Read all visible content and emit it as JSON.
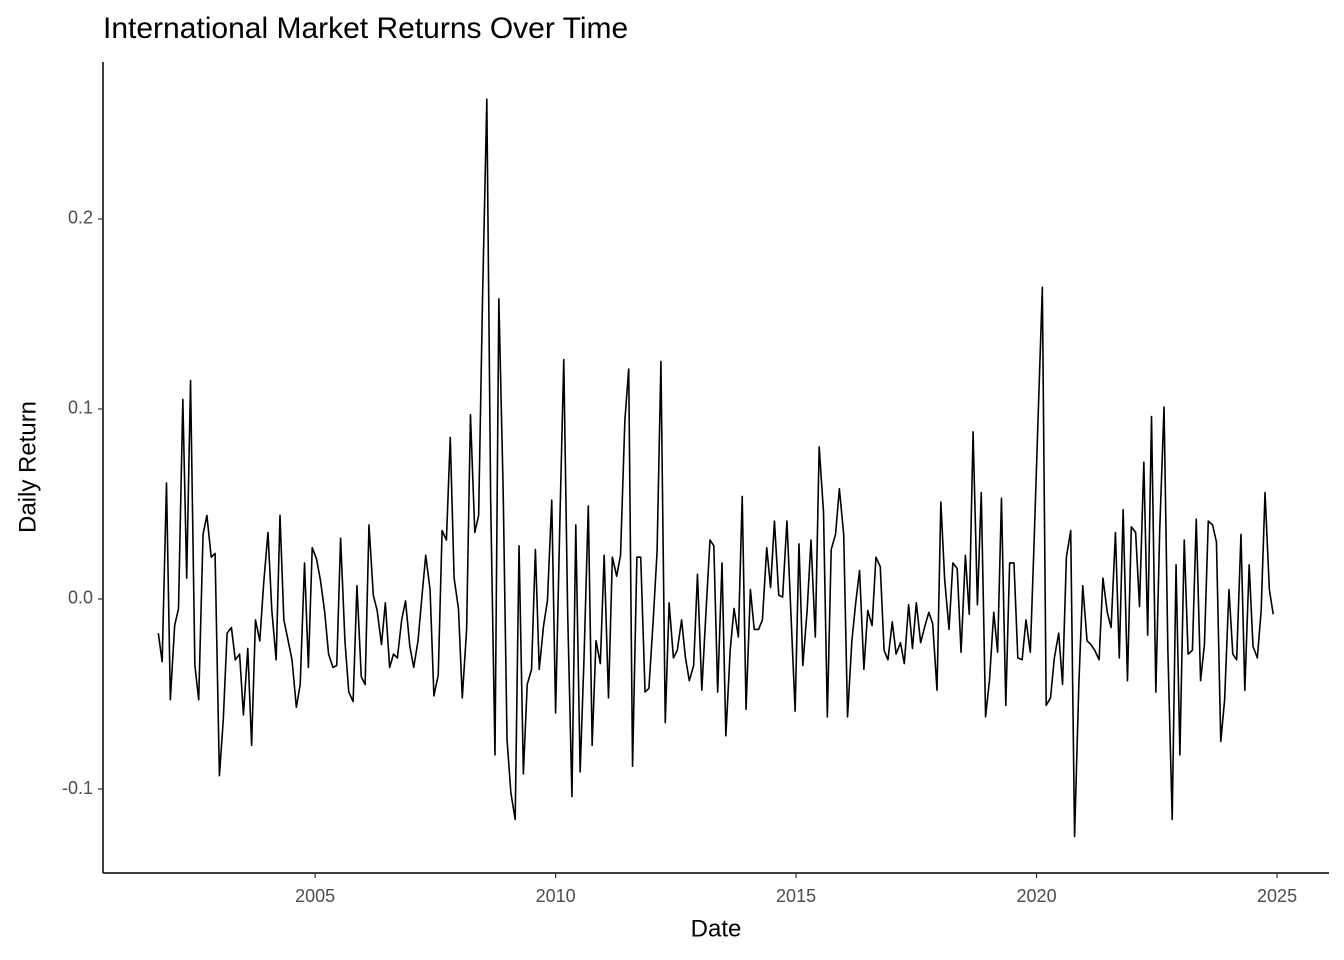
{
  "chart_data": {
    "type": "line",
    "title": "International Market Returns Over Time",
    "x_label": "Date",
    "y_label": "Daily Return",
    "color": "#000000",
    "xlim": [
      2000.59,
      2026.08
    ],
    "ylim": [
      -0.1442,
      0.2826
    ],
    "xticks": [
      2005,
      2010,
      2015,
      2020,
      2025
    ],
    "yticks": [
      -0.1,
      {
        "value": 0,
        "label": "0.0"
      },
      0.1,
      0.2
    ],
    "x": [
      2001.74,
      2001.82,
      2001.91,
      2001.99,
      2002.08,
      2002.16,
      2002.25,
      2002.33,
      2002.41,
      2002.5,
      2002.58,
      2002.67,
      2002.75,
      2002.84,
      2002.92,
      2003.01,
      2003.09,
      2003.17,
      2003.26,
      2003.34,
      2003.43,
      2003.51,
      2003.6,
      2003.68,
      2003.76,
      2003.85,
      2003.93,
      2004.02,
      2004.1,
      2004.19,
      2004.27,
      2004.35,
      2004.44,
      2004.52,
      2004.61,
      2004.69,
      2004.78,
      2004.86,
      2004.94,
      2005.03,
      2005.11,
      2005.2,
      2005.28,
      2005.37,
      2005.45,
      2005.53,
      2005.62,
      2005.7,
      2005.79,
      2005.87,
      2005.96,
      2006.04,
      2006.12,
      2006.21,
      2006.29,
      2006.38,
      2006.46,
      2006.55,
      2006.63,
      2006.71,
      2006.8,
      2006.88,
      2006.97,
      2007.05,
      2007.14,
      2007.22,
      2007.3,
      2007.39,
      2007.47,
      2007.56,
      2007.64,
      2007.73,
      2007.81,
      2007.89,
      2007.98,
      2008.06,
      2008.15,
      2008.23,
      2008.32,
      2008.4,
      2008.48,
      2008.57,
      2008.65,
      2008.74,
      2008.82,
      2008.91,
      2008.99,
      2009.07,
      2009.16,
      2009.24,
      2009.33,
      2009.41,
      2009.5,
      2009.58,
      2009.66,
      2009.75,
      2009.83,
      2009.92,
      2010.0,
      2010.09,
      2010.17,
      2010.25,
      2010.34,
      2010.42,
      2010.51,
      2010.59,
      2010.68,
      2010.76,
      2010.84,
      2010.93,
      2011.01,
      2011.1,
      2011.18,
      2011.27,
      2011.35,
      2011.44,
      2011.52,
      2011.6,
      2011.69,
      2011.77,
      2011.86,
      2011.94,
      2012.03,
      2012.11,
      2012.19,
      2012.28,
      2012.36,
      2012.45,
      2012.53,
      2012.62,
      2012.7,
      2012.78,
      2012.87,
      2012.95,
      2013.04,
      2013.12,
      2013.21,
      2013.29,
      2013.37,
      2013.46,
      2013.54,
      2013.63,
      2013.71,
      2013.8,
      2013.88,
      2013.96,
      2014.05,
      2014.13,
      2014.22,
      2014.3,
      2014.39,
      2014.47,
      2014.55,
      2014.64,
      2014.72,
      2014.81,
      2014.89,
      2014.98,
      2015.06,
      2015.14,
      2015.23,
      2015.31,
      2015.4,
      2015.48,
      2015.57,
      2015.65,
      2015.73,
      2015.82,
      2015.9,
      2015.99,
      2016.07,
      2016.16,
      2016.24,
      2016.32,
      2016.41,
      2016.49,
      2016.58,
      2016.66,
      2016.75,
      2016.83,
      2016.91,
      2017.0,
      2017.08,
      2017.17,
      2017.25,
      2017.34,
      2017.42,
      2017.5,
      2017.59,
      2017.67,
      2017.76,
      2017.84,
      2017.93,
      2018.01,
      2018.09,
      2018.18,
      2018.26,
      2018.35,
      2018.43,
      2018.52,
      2018.6,
      2018.68,
      2018.77,
      2018.85,
      2018.94,
      2019.02,
      2019.11,
      2019.19,
      2019.27,
      2019.36,
      2019.44,
      2019.53,
      2019.61,
      2019.7,
      2019.78,
      2019.87,
      2019.95,
      2020.03,
      2020.12,
      2020.2,
      2020.29,
      2020.37,
      2020.46,
      2020.54,
      2020.62,
      2020.71,
      2020.79,
      2020.88,
      2020.96,
      2021.05,
      2021.13,
      2021.21,
      2021.3,
      2021.38,
      2021.47,
      2021.55,
      2021.64,
      2021.72,
      2021.8,
      2021.89,
      2021.97,
      2022.06,
      2022.14,
      2022.23,
      2022.31,
      2022.39,
      2022.48,
      2022.56,
      2022.65,
      2022.73,
      2022.82,
      2022.9,
      2022.98,
      2023.07,
      2023.15,
      2023.24,
      2023.32,
      2023.41,
      2023.49,
      2023.57,
      2023.66,
      2023.74,
      2023.83,
      2023.91,
      2024.0,
      2024.08,
      2024.16,
      2024.25,
      2024.33,
      2024.42,
      2024.5,
      2024.59,
      2024.67,
      2024.75,
      2024.84,
      2024.92
    ],
    "values": [
      -0.018,
      -0.033,
      0.061,
      -0.053,
      -0.014,
      -0.005,
      0.105,
      0.011,
      0.115,
      -0.035,
      -0.053,
      0.034,
      0.044,
      0.022,
      0.024,
      -0.093,
      -0.064,
      -0.018,
      -0.015,
      -0.032,
      -0.029,
      -0.061,
      -0.026,
      -0.077,
      -0.011,
      -0.022,
      0.008,
      0.035,
      -0.006,
      -0.032,
      0.044,
      -0.011,
      -0.022,
      -0.032,
      -0.057,
      -0.045,
      0.019,
      -0.036,
      0.027,
      0.021,
      0.01,
      -0.007,
      -0.029,
      -0.036,
      -0.035,
      0.032,
      -0.022,
      -0.049,
      -0.054,
      0.007,
      -0.041,
      -0.045,
      0.039,
      0.002,
      -0.006,
      -0.024,
      -0.002,
      -0.036,
      -0.029,
      -0.031,
      -0.011,
      -0.001,
      -0.025,
      -0.036,
      -0.022,
      0.001,
      0.023,
      0.005,
      -0.051,
      -0.04,
      0.036,
      0.031,
      0.085,
      0.011,
      -0.005,
      -0.052,
      -0.016,
      0.097,
      0.035,
      0.044,
      0.157,
      0.263,
      0.052,
      -0.082,
      0.158,
      0.057,
      -0.074,
      -0.102,
      -0.116,
      0.028,
      -0.092,
      -0.045,
      -0.037,
      0.026,
      -0.037,
      -0.014,
      -0.001,
      0.052,
      -0.06,
      0.042,
      0.126,
      -0.006,
      -0.104,
      0.039,
      -0.091,
      -0.032,
      0.049,
      -0.077,
      -0.022,
      -0.034,
      0.023,
      -0.052,
      0.022,
      0.012,
      0.023,
      0.094,
      0.121,
      -0.088,
      0.022,
      0.022,
      -0.049,
      -0.047,
      -0.011,
      0.025,
      0.125,
      -0.065,
      -0.002,
      -0.031,
      -0.027,
      -0.011,
      -0.031,
      -0.043,
      -0.035,
      0.013,
      -0.048,
      -0.01,
      0.031,
      0.028,
      -0.049,
      0.019,
      -0.072,
      -0.027,
      -0.005,
      -0.02,
      0.054,
      -0.058,
      0.005,
      -0.016,
      -0.016,
      -0.011,
      0.027,
      0.006,
      0.041,
      0.002,
      0.001,
      0.041,
      -0.006,
      -0.059,
      0.029,
      -0.035,
      -0.006,
      0.031,
      -0.02,
      0.08,
      0.046,
      -0.062,
      0.026,
      0.034,
      0.058,
      0.034,
      -0.062,
      -0.022,
      -0.002,
      0.015,
      -0.037,
      -0.006,
      -0.014,
      0.022,
      0.017,
      -0.027,
      -0.032,
      -0.012,
      -0.029,
      -0.023,
      -0.034,
      -0.003,
      -0.026,
      -0.002,
      -0.023,
      -0.015,
      -0.007,
      -0.013,
      -0.048,
      0.051,
      0.01,
      -0.016,
      0.019,
      0.016,
      -0.028,
      0.023,
      -0.008,
      0.088,
      -0.003,
      0.056,
      -0.062,
      -0.043,
      -0.007,
      -0.028,
      0.053,
      -0.056,
      0.019,
      0.019,
      -0.031,
      -0.032,
      -0.011,
      -0.028,
      0.031,
      0.094,
      0.164,
      -0.056,
      -0.052,
      -0.031,
      -0.018,
      -0.045,
      0.022,
      0.036,
      -0.125,
      -0.044,
      0.007,
      -0.022,
      -0.024,
      -0.027,
      -0.032,
      0.011,
      -0.007,
      -0.015,
      0.035,
      -0.031,
      0.047,
      -0.043,
      0.038,
      0.035,
      -0.004,
      0.072,
      -0.019,
      0.096,
      -0.049,
      0.036,
      0.101,
      -0.027,
      -0.116,
      0.018,
      -0.082,
      0.031,
      -0.029,
      -0.027,
      0.042,
      -0.043,
      -0.024,
      0.041,
      0.039,
      0.03,
      -0.075,
      -0.053,
      0.005,
      -0.029,
      -0.032,
      0.034,
      -0.048,
      0.018,
      -0.025,
      -0.031,
      -0.006,
      0.056,
      0.005,
      -0.008
    ]
  }
}
